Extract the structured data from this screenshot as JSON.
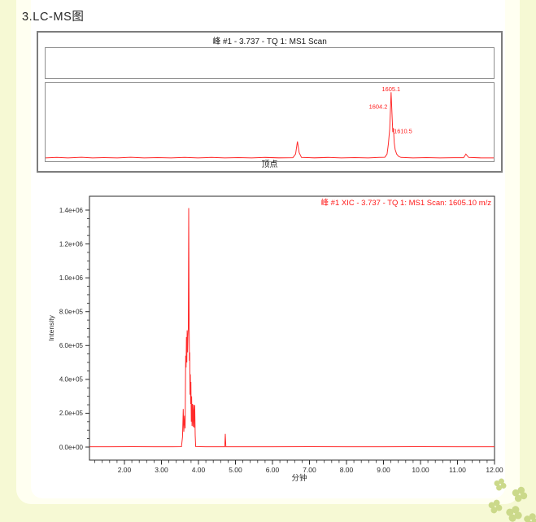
{
  "page": {
    "title": "3.LC-MS图",
    "background_color": "#f6f9d4",
    "ivory_color": "#fffff1",
    "sheet_color": "#ffffff",
    "clover_color": "#cbd98a"
  },
  "spectrum_panel": {
    "title": "峰 #1 - 3.737 - TQ 1: MS1 Scan",
    "bottom_label": "顶点"
  },
  "xic_panel": {
    "title": "峰 #1 XIC - 3.737 - TQ 1: MS1 Scan: 1605.10 m/z",
    "ylabel": "Intensity",
    "xlabel": "分钟"
  },
  "colors": {
    "trace_red": "#ff2a2a",
    "label_red": "#ff1a1a",
    "axis": "#2a2a2a",
    "panel_border": "#7d7d7d"
  },
  "chart_data": [
    {
      "id": "ms1-spectrum",
      "type": "line",
      "title": "峰 #1 - 3.737 - TQ 1: MS1 Scan",
      "xlabel": "顶点",
      "ylabel": "",
      "line_color": "#ff2a2a",
      "axes_shown": false,
      "labeled_peaks_mz": [
        1604.2,
        1605.1,
        1610.5
      ],
      "peak_labels": [
        {
          "text": "1605.1",
          "nx": 0.771,
          "py": 10,
          "anchor": "middle"
        },
        {
          "text": "1604.2",
          "nx": 0.763,
          "py": 31,
          "anchor": "end"
        },
        {
          "text": "1610.5",
          "nx": 0.777,
          "py": 60,
          "anchor": "start"
        }
      ],
      "points_norm": [
        [
          0,
          0.012
        ],
        [
          0.025,
          0.02
        ],
        [
          0.05,
          0.012
        ],
        [
          0.08,
          0.022
        ],
        [
          0.105,
          0.012
        ],
        [
          0.13,
          0.018
        ],
        [
          0.16,
          0.012
        ],
        [
          0.19,
          0.022
        ],
        [
          0.22,
          0.012
        ],
        [
          0.25,
          0.018
        ],
        [
          0.28,
          0.012
        ],
        [
          0.31,
          0.02
        ],
        [
          0.34,
          0.012
        ],
        [
          0.37,
          0.02
        ],
        [
          0.4,
          0.012
        ],
        [
          0.43,
          0.018
        ],
        [
          0.46,
          0.012
        ],
        [
          0.49,
          0.02
        ],
        [
          0.52,
          0.014
        ],
        [
          0.552,
          0.016
        ],
        [
          0.558,
          0.07
        ],
        [
          0.562,
          0.26
        ],
        [
          0.566,
          0.09
        ],
        [
          0.571,
          0.02
        ],
        [
          0.6,
          0.014
        ],
        [
          0.63,
          0.02
        ],
        [
          0.66,
          0.012
        ],
        [
          0.69,
          0.018
        ],
        [
          0.72,
          0.012
        ],
        [
          0.745,
          0.02
        ],
        [
          0.757,
          0.022
        ],
        [
          0.762,
          0.07
        ],
        [
          0.765,
          0.22
        ],
        [
          0.768,
          0.45
        ],
        [
          0.771,
          1.0
        ],
        [
          0.7733,
          0.62
        ],
        [
          0.7748,
          0.4
        ],
        [
          0.7762,
          0.46
        ],
        [
          0.778,
          0.24
        ],
        [
          0.78,
          0.14
        ],
        [
          0.7835,
          0.07
        ],
        [
          0.788,
          0.035
        ],
        [
          0.793,
          0.02
        ],
        [
          0.82,
          0.012
        ],
        [
          0.85,
          0.018
        ],
        [
          0.88,
          0.012
        ],
        [
          0.91,
          0.016
        ],
        [
          0.933,
          0.016
        ],
        [
          0.938,
          0.07
        ],
        [
          0.944,
          0.02
        ],
        [
          0.97,
          0.014
        ],
        [
          1,
          0.012
        ]
      ]
    },
    {
      "id": "xic-chromatogram",
      "type": "line",
      "title": "峰 #1 XIC - 3.737 - TQ 1: MS1 Scan: 1605.10 m/z",
      "xlabel": "分钟",
      "ylabel": "Intensity",
      "line_color": "#ff2a2a",
      "grid": false,
      "legend": "none",
      "xlim": [
        1.06,
        12.0
      ],
      "ylim": [
        0,
        1400000
      ],
      "main_peak_retention_time": 3.737,
      "x_ticks": [
        2,
        3,
        4,
        5,
        6,
        7,
        8,
        9,
        10,
        11,
        12
      ],
      "x_tick_labels": [
        "2.00",
        "3.00",
        "4.00",
        "5.00",
        "6.00",
        "7.00",
        "8.00",
        "9.00",
        "10.00",
        "11.00",
        "12.00"
      ],
      "x_minor_step": 0.2,
      "y_ticks": [
        0,
        200000,
        400000,
        600000,
        800000,
        1000000,
        1200000,
        1400000
      ],
      "y_tick_labels": [
        "0.0e+00",
        "2.0e+05",
        "4.0e+05",
        "6.0e+05",
        "8.0e+05",
        "1.0e+06",
        "1.2e+06",
        "1.4e+06"
      ],
      "y_minor_step": 50000,
      "points": [
        [
          1.06,
          2000
        ],
        [
          1.6,
          2000
        ],
        [
          2.2,
          2500
        ],
        [
          2.8,
          2000
        ],
        [
          3.3,
          2000
        ],
        [
          3.54,
          2500
        ],
        [
          3.57,
          60000
        ],
        [
          3.59,
          225000
        ],
        [
          3.605,
          90000
        ],
        [
          3.625,
          185000
        ],
        [
          3.64,
          110000
        ],
        [
          3.655,
          540000
        ],
        [
          3.665,
          470000
        ],
        [
          3.675,
          650000
        ],
        [
          3.685,
          500000
        ],
        [
          3.695,
          690000
        ],
        [
          3.705,
          560000
        ],
        [
          3.715,
          650000
        ],
        [
          3.725,
          700000
        ],
        [
          3.737,
          1412000
        ],
        [
          3.749,
          690000
        ],
        [
          3.757,
          510000
        ],
        [
          3.764,
          560000
        ],
        [
          3.772,
          310000
        ],
        [
          3.78,
          430000
        ],
        [
          3.788,
          255000
        ],
        [
          3.796,
          385000
        ],
        [
          3.806,
          150000
        ],
        [
          3.816,
          300000
        ],
        [
          3.826,
          125000
        ],
        [
          3.84,
          255000
        ],
        [
          3.855,
          120000
        ],
        [
          3.87,
          250000
        ],
        [
          3.885,
          115000
        ],
        [
          3.9,
          248000
        ],
        [
          3.912,
          70000
        ],
        [
          3.925,
          3000
        ],
        [
          4.2,
          2000
        ],
        [
          4.71,
          2000
        ],
        [
          4.725,
          78000
        ],
        [
          4.74,
          2000
        ],
        [
          5.2,
          2000
        ],
        [
          6.0,
          2000
        ],
        [
          7.0,
          2500
        ],
        [
          8.0,
          2000
        ],
        [
          9.0,
          2000
        ],
        [
          10.0,
          2500
        ],
        [
          11.0,
          2000
        ],
        [
          12.0,
          2000
        ]
      ]
    }
  ]
}
